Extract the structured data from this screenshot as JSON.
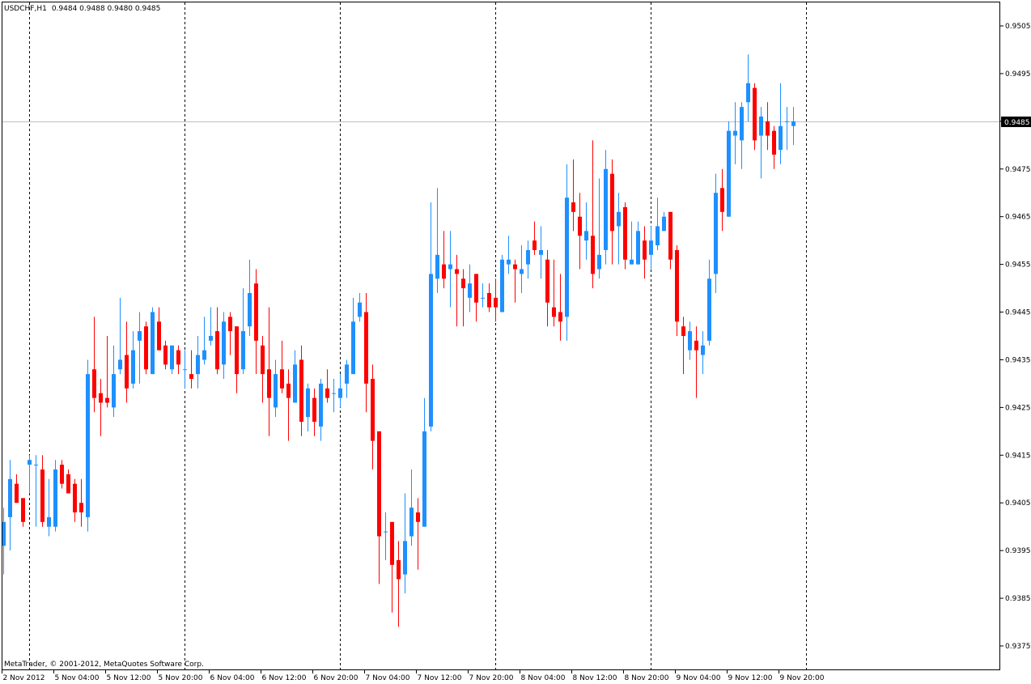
{
  "header": {
    "symbol_timeframe": "USDCHF,H1",
    "ohlc_text": "0.9484 0.9488 0.9480 0.9485"
  },
  "copyright": "MetaTrader, © 2001-2012, MetaQuotes Software Corp.",
  "colors": {
    "bull": "#1e90ff",
    "bear": "#ff0000",
    "background": "#ffffff",
    "grid": "#000000",
    "bid_line": "#c0c0c0"
  },
  "chart_data": {
    "type": "candlestick",
    "title": "USDCHF,H1",
    "ylim": [
      0.937,
      0.951
    ],
    "y_ticks": [
      "0.9505",
      "0.9495",
      "0.9485",
      "0.9475",
      "0.9465",
      "0.9455",
      "0.9445",
      "0.9435",
      "0.9425",
      "0.9415",
      "0.9405",
      "0.9395",
      "0.9385",
      "0.9375"
    ],
    "x_tick_labels": [
      "2 Nov 2012",
      "5 Nov 04:00",
      "5 Nov 12:00",
      "5 Nov 20:00",
      "6 Nov 04:00",
      "6 Nov 12:00",
      "6 Nov 20:00",
      "7 Nov 04:00",
      "7 Nov 12:00",
      "7 Nov 20:00",
      "8 Nov 04:00",
      "8 Nov 12:00",
      "8 Nov 20:00",
      "9 Nov 04:00",
      "9 Nov 12:00",
      "9 Nov 20:00"
    ],
    "bars_per_x_tick": 8,
    "day_separator_bars": [
      4,
      28,
      52,
      76,
      100,
      124
    ],
    "current_price": "0.9485",
    "ohlc_fields": [
      "open",
      "high",
      "low",
      "close"
    ],
    "ohlc": [
      [
        0.9396,
        0.9404,
        0.939,
        0.9401
      ],
      [
        0.9402,
        0.9414,
        0.9395,
        0.941
      ],
      [
        0.9409,
        0.9411,
        0.9405,
        0.9405
      ],
      [
        0.9406,
        0.9406,
        0.94,
        0.9401
      ],
      [
        0.9413,
        0.9415,
        0.9407,
        0.9414
      ],
      [
        0.9413,
        0.9415,
        0.94,
        0.9413
      ],
      [
        0.9412,
        0.9415,
        0.94,
        0.9401
      ],
      [
        0.94,
        0.941,
        0.9398,
        0.9402
      ],
      [
        0.94,
        0.9414,
        0.9399,
        0.9412
      ],
      [
        0.9413,
        0.9414,
        0.9408,
        0.9409
      ],
      [
        0.9411,
        0.9412,
        0.9407,
        0.9407
      ],
      [
        0.9409,
        0.941,
        0.9401,
        0.9403
      ],
      [
        0.9405,
        0.941,
        0.94,
        0.9403
      ],
      [
        0.9402,
        0.9435,
        0.9399,
        0.9432
      ],
      [
        0.9433,
        0.9444,
        0.9424,
        0.9427
      ],
      [
        0.9428,
        0.9431,
        0.9419,
        0.9426
      ],
      [
        0.9427,
        0.944,
        0.9425,
        0.9426
      ],
      [
        0.9425,
        0.9438,
        0.9423,
        0.9432
      ],
      [
        0.9433,
        0.9448,
        0.9432,
        0.9435
      ],
      [
        0.9436,
        0.9443,
        0.9426,
        0.9429
      ],
      [
        0.943,
        0.9441,
        0.9429,
        0.9437
      ],
      [
        0.9439,
        0.9445,
        0.943,
        0.9441
      ],
      [
        0.9442,
        0.9443,
        0.9432,
        0.9433
      ],
      [
        0.9432,
        0.9446,
        0.9432,
        0.9445
      ],
      [
        0.9443,
        0.9446,
        0.9437,
        0.9437
      ],
      [
        0.9438,
        0.9439,
        0.9433,
        0.9434
      ],
      [
        0.9433,
        0.9438,
        0.9432,
        0.9438
      ],
      [
        0.9437,
        0.9438,
        0.9432,
        0.9434
      ],
      [
        0.9433,
        0.9437,
        0.9429,
        0.9433
      ],
      [
        0.9432,
        0.9437,
        0.9429,
        0.9431
      ],
      [
        0.9432,
        0.944,
        0.9429,
        0.9436
      ],
      [
        0.9435,
        0.9444,
        0.9434,
        0.9437
      ],
      [
        0.9439,
        0.9446,
        0.9438,
        0.944
      ],
      [
        0.9441,
        0.9446,
        0.9432,
        0.9433
      ],
      [
        0.9434,
        0.9445,
        0.9431,
        0.9443
      ],
      [
        0.9444,
        0.9445,
        0.9436,
        0.9441
      ],
      [
        0.9442,
        0.9442,
        0.9428,
        0.9432
      ],
      [
        0.9433,
        0.945,
        0.9432,
        0.9441
      ],
      [
        0.9442,
        0.9456,
        0.944,
        0.9449
      ],
      [
        0.9451,
        0.9454,
        0.9432,
        0.9439
      ],
      [
        0.9438,
        0.944,
        0.9426,
        0.9432
      ],
      [
        0.9433,
        0.9446,
        0.9419,
        0.9427
      ],
      [
        0.9425,
        0.9435,
        0.9423,
        0.9432
      ],
      [
        0.9433,
        0.9439,
        0.9428,
        0.9429
      ],
      [
        0.943,
        0.9433,
        0.9418,
        0.9427
      ],
      [
        0.9426,
        0.9437,
        0.9426,
        0.9434
      ],
      [
        0.9435,
        0.9438,
        0.9419,
        0.9422
      ],
      [
        0.9423,
        0.943,
        0.942,
        0.9429
      ],
      [
        0.9427,
        0.9429,
        0.9419,
        0.9422
      ],
      [
        0.9421,
        0.9431,
        0.9418,
        0.943
      ],
      [
        0.9429,
        0.9433,
        0.9426,
        0.9427
      ],
      [
        0.9428,
        0.9431,
        0.9424,
        0.9428
      ],
      [
        0.9427,
        0.9432,
        0.9425,
        0.9429
      ],
      [
        0.943,
        0.9435,
        0.9427,
        0.9434
      ],
      [
        0.9432,
        0.9448,
        0.9432,
        0.9443
      ],
      [
        0.9444,
        0.9449,
        0.9443,
        0.9447
      ],
      [
        0.9445,
        0.9449,
        0.9424,
        0.943
      ],
      [
        0.9431,
        0.9434,
        0.9412,
        0.9418
      ],
      [
        0.942,
        0.942,
        0.9388,
        0.9398
      ],
      [
        0.9399,
        0.9403,
        0.9393,
        0.9399
      ],
      [
        0.9401,
        0.9401,
        0.9382,
        0.9392
      ],
      [
        0.9393,
        0.9397,
        0.9379,
        0.9389
      ],
      [
        0.939,
        0.9407,
        0.9386,
        0.9397
      ],
      [
        0.9398,
        0.9412,
        0.9396,
        0.9404
      ],
      [
        0.9403,
        0.9406,
        0.9391,
        0.9401
      ],
      [
        0.94,
        0.9427,
        0.94,
        0.942
      ],
      [
        0.9421,
        0.9468,
        0.942,
        0.9453
      ],
      [
        0.9452,
        0.9471,
        0.9449,
        0.9457
      ],
      [
        0.9455,
        0.9462,
        0.945,
        0.9452
      ],
      [
        0.9454,
        0.9462,
        0.9446,
        0.9455
      ],
      [
        0.9454,
        0.9457,
        0.9442,
        0.9453
      ],
      [
        0.9452,
        0.9454,
        0.9442,
        0.945
      ],
      [
        0.9448,
        0.9455,
        0.9445,
        0.9451
      ],
      [
        0.9453,
        0.9453,
        0.9443,
        0.9447
      ],
      [
        0.9448,
        0.9451,
        0.9446,
        0.9448
      ],
      [
        0.9449,
        0.9451,
        0.9445,
        0.9446
      ],
      [
        0.9448,
        0.9452,
        0.9443,
        0.9446
      ],
      [
        0.9445,
        0.9457,
        0.9445,
        0.9456
      ],
      [
        0.9455,
        0.9461,
        0.9453,
        0.9456
      ],
      [
        0.9455,
        0.9456,
        0.9447,
        0.9454
      ],
      [
        0.9453,
        0.9459,
        0.9449,
        0.9454
      ],
      [
        0.9455,
        0.946,
        0.9452,
        0.9458
      ],
      [
        0.946,
        0.9464,
        0.9457,
        0.9458
      ],
      [
        0.9457,
        0.9463,
        0.9452,
        0.9458
      ],
      [
        0.9456,
        0.9458,
        0.9442,
        0.9447
      ],
      [
        0.9446,
        0.9456,
        0.9442,
        0.9444
      ],
      [
        0.9445,
        0.9453,
        0.9439,
        0.9443
      ],
      [
        0.9444,
        0.9476,
        0.9439,
        0.9469
      ],
      [
        0.9468,
        0.9477,
        0.9462,
        0.9466
      ],
      [
        0.9465,
        0.947,
        0.9454,
        0.9461
      ],
      [
        0.946,
        0.9468,
        0.9456,
        0.9462
      ],
      [
        0.9461,
        0.9481,
        0.945,
        0.9453
      ],
      [
        0.9454,
        0.9473,
        0.9452,
        0.9457
      ],
      [
        0.9458,
        0.9479,
        0.9455,
        0.9475
      ],
      [
        0.9474,
        0.9477,
        0.9455,
        0.9462
      ],
      [
        0.9463,
        0.947,
        0.9455,
        0.9466
      ],
      [
        0.9467,
        0.9468,
        0.9454,
        0.9456
      ],
      [
        0.9455,
        0.9464,
        0.9455,
        0.9456
      ],
      [
        0.9455,
        0.9464,
        0.9455,
        0.9462
      ],
      [
        0.946,
        0.9463,
        0.9452,
        0.9456
      ],
      [
        0.9457,
        0.9463,
        0.9454,
        0.946
      ],
      [
        0.9459,
        0.9469,
        0.9458,
        0.9463
      ],
      [
        0.9462,
        0.9466,
        0.9462,
        0.9465
      ],
      [
        0.9466,
        0.9466,
        0.9454,
        0.9456
      ],
      [
        0.9458,
        0.9459,
        0.944,
        0.9443
      ],
      [
        0.9442,
        0.9444,
        0.9432,
        0.944
      ],
      [
        0.9437,
        0.9443,
        0.9435,
        0.9441
      ],
      [
        0.9439,
        0.9442,
        0.9427,
        0.9437
      ],
      [
        0.9436,
        0.9441,
        0.9432,
        0.9438
      ],
      [
        0.9439,
        0.9456,
        0.9438,
        0.9452
      ],
      [
        0.9453,
        0.9474,
        0.9449,
        0.947
      ],
      [
        0.9471,
        0.9475,
        0.9462,
        0.9466
      ],
      [
        0.9465,
        0.9485,
        0.9465,
        0.9483
      ],
      [
        0.9482,
        0.9489,
        0.9476,
        0.9483
      ],
      [
        0.9481,
        0.9489,
        0.9475,
        0.9488
      ],
      [
        0.9489,
        0.9499,
        0.9485,
        0.9493
      ],
      [
        0.9492,
        0.9493,
        0.9479,
        0.9481
      ],
      [
        0.9482,
        0.9488,
        0.9473,
        0.9486
      ],
      [
        0.9485,
        0.9489,
        0.9479,
        0.9482
      ],
      [
        0.9483,
        0.9484,
        0.9475,
        0.9478
      ],
      [
        0.9479,
        0.9493,
        0.9476,
        0.9484
      ],
      [
        0.9485,
        0.9488,
        0.9479,
        0.9485
      ],
      [
        0.9484,
        0.9488,
        0.948,
        0.9485
      ]
    ]
  }
}
